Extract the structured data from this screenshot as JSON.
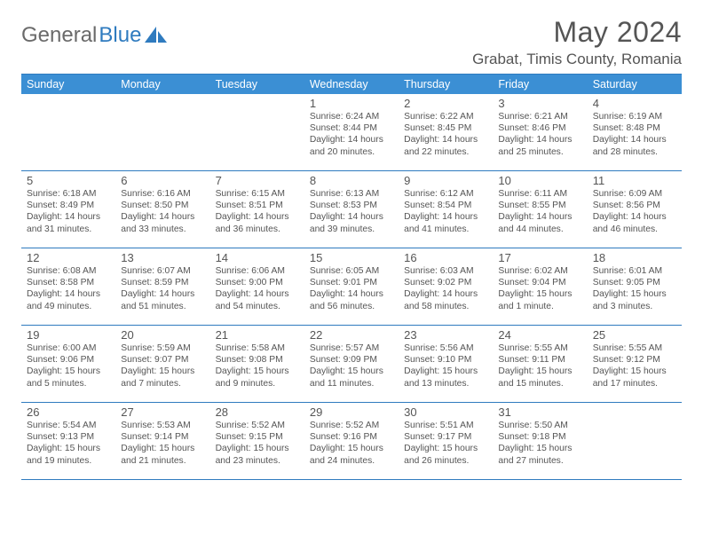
{
  "logo": {
    "textGray": "General",
    "textBlue": "Blue"
  },
  "header": {
    "month": "May 2024",
    "location": "Grabat, Timis County, Romania"
  },
  "colors": {
    "brand": "#3b8fd4",
    "rule": "#2f7bbf",
    "text": "#555555",
    "bg": "#ffffff"
  },
  "dow": [
    "Sunday",
    "Monday",
    "Tuesday",
    "Wednesday",
    "Thursday",
    "Friday",
    "Saturday"
  ],
  "weeks": [
    [
      {
        "n": "",
        "sr": "",
        "ss": "",
        "d1": "",
        "d2": "",
        "empty": true
      },
      {
        "n": "",
        "sr": "",
        "ss": "",
        "d1": "",
        "d2": "",
        "empty": true
      },
      {
        "n": "",
        "sr": "",
        "ss": "",
        "d1": "",
        "d2": "",
        "empty": true
      },
      {
        "n": "1",
        "sr": "Sunrise: 6:24 AM",
        "ss": "Sunset: 8:44 PM",
        "d1": "Daylight: 14 hours",
        "d2": "and 20 minutes."
      },
      {
        "n": "2",
        "sr": "Sunrise: 6:22 AM",
        "ss": "Sunset: 8:45 PM",
        "d1": "Daylight: 14 hours",
        "d2": "and 22 minutes."
      },
      {
        "n": "3",
        "sr": "Sunrise: 6:21 AM",
        "ss": "Sunset: 8:46 PM",
        "d1": "Daylight: 14 hours",
        "d2": "and 25 minutes."
      },
      {
        "n": "4",
        "sr": "Sunrise: 6:19 AM",
        "ss": "Sunset: 8:48 PM",
        "d1": "Daylight: 14 hours",
        "d2": "and 28 minutes."
      }
    ],
    [
      {
        "n": "5",
        "sr": "Sunrise: 6:18 AM",
        "ss": "Sunset: 8:49 PM",
        "d1": "Daylight: 14 hours",
        "d2": "and 31 minutes."
      },
      {
        "n": "6",
        "sr": "Sunrise: 6:16 AM",
        "ss": "Sunset: 8:50 PM",
        "d1": "Daylight: 14 hours",
        "d2": "and 33 minutes."
      },
      {
        "n": "7",
        "sr": "Sunrise: 6:15 AM",
        "ss": "Sunset: 8:51 PM",
        "d1": "Daylight: 14 hours",
        "d2": "and 36 minutes."
      },
      {
        "n": "8",
        "sr": "Sunrise: 6:13 AM",
        "ss": "Sunset: 8:53 PM",
        "d1": "Daylight: 14 hours",
        "d2": "and 39 minutes."
      },
      {
        "n": "9",
        "sr": "Sunrise: 6:12 AM",
        "ss": "Sunset: 8:54 PM",
        "d1": "Daylight: 14 hours",
        "d2": "and 41 minutes."
      },
      {
        "n": "10",
        "sr": "Sunrise: 6:11 AM",
        "ss": "Sunset: 8:55 PM",
        "d1": "Daylight: 14 hours",
        "d2": "and 44 minutes."
      },
      {
        "n": "11",
        "sr": "Sunrise: 6:09 AM",
        "ss": "Sunset: 8:56 PM",
        "d1": "Daylight: 14 hours",
        "d2": "and 46 minutes."
      }
    ],
    [
      {
        "n": "12",
        "sr": "Sunrise: 6:08 AM",
        "ss": "Sunset: 8:58 PM",
        "d1": "Daylight: 14 hours",
        "d2": "and 49 minutes."
      },
      {
        "n": "13",
        "sr": "Sunrise: 6:07 AM",
        "ss": "Sunset: 8:59 PM",
        "d1": "Daylight: 14 hours",
        "d2": "and 51 minutes."
      },
      {
        "n": "14",
        "sr": "Sunrise: 6:06 AM",
        "ss": "Sunset: 9:00 PM",
        "d1": "Daylight: 14 hours",
        "d2": "and 54 minutes."
      },
      {
        "n": "15",
        "sr": "Sunrise: 6:05 AM",
        "ss": "Sunset: 9:01 PM",
        "d1": "Daylight: 14 hours",
        "d2": "and 56 minutes."
      },
      {
        "n": "16",
        "sr": "Sunrise: 6:03 AM",
        "ss": "Sunset: 9:02 PM",
        "d1": "Daylight: 14 hours",
        "d2": "and 58 minutes."
      },
      {
        "n": "17",
        "sr": "Sunrise: 6:02 AM",
        "ss": "Sunset: 9:04 PM",
        "d1": "Daylight: 15 hours",
        "d2": "and 1 minute."
      },
      {
        "n": "18",
        "sr": "Sunrise: 6:01 AM",
        "ss": "Sunset: 9:05 PM",
        "d1": "Daylight: 15 hours",
        "d2": "and 3 minutes."
      }
    ],
    [
      {
        "n": "19",
        "sr": "Sunrise: 6:00 AM",
        "ss": "Sunset: 9:06 PM",
        "d1": "Daylight: 15 hours",
        "d2": "and 5 minutes."
      },
      {
        "n": "20",
        "sr": "Sunrise: 5:59 AM",
        "ss": "Sunset: 9:07 PM",
        "d1": "Daylight: 15 hours",
        "d2": "and 7 minutes."
      },
      {
        "n": "21",
        "sr": "Sunrise: 5:58 AM",
        "ss": "Sunset: 9:08 PM",
        "d1": "Daylight: 15 hours",
        "d2": "and 9 minutes."
      },
      {
        "n": "22",
        "sr": "Sunrise: 5:57 AM",
        "ss": "Sunset: 9:09 PM",
        "d1": "Daylight: 15 hours",
        "d2": "and 11 minutes."
      },
      {
        "n": "23",
        "sr": "Sunrise: 5:56 AM",
        "ss": "Sunset: 9:10 PM",
        "d1": "Daylight: 15 hours",
        "d2": "and 13 minutes."
      },
      {
        "n": "24",
        "sr": "Sunrise: 5:55 AM",
        "ss": "Sunset: 9:11 PM",
        "d1": "Daylight: 15 hours",
        "d2": "and 15 minutes."
      },
      {
        "n": "25",
        "sr": "Sunrise: 5:55 AM",
        "ss": "Sunset: 9:12 PM",
        "d1": "Daylight: 15 hours",
        "d2": "and 17 minutes."
      }
    ],
    [
      {
        "n": "26",
        "sr": "Sunrise: 5:54 AM",
        "ss": "Sunset: 9:13 PM",
        "d1": "Daylight: 15 hours",
        "d2": "and 19 minutes."
      },
      {
        "n": "27",
        "sr": "Sunrise: 5:53 AM",
        "ss": "Sunset: 9:14 PM",
        "d1": "Daylight: 15 hours",
        "d2": "and 21 minutes."
      },
      {
        "n": "28",
        "sr": "Sunrise: 5:52 AM",
        "ss": "Sunset: 9:15 PM",
        "d1": "Daylight: 15 hours",
        "d2": "and 23 minutes."
      },
      {
        "n": "29",
        "sr": "Sunrise: 5:52 AM",
        "ss": "Sunset: 9:16 PM",
        "d1": "Daylight: 15 hours",
        "d2": "and 24 minutes."
      },
      {
        "n": "30",
        "sr": "Sunrise: 5:51 AM",
        "ss": "Sunset: 9:17 PM",
        "d1": "Daylight: 15 hours",
        "d2": "and 26 minutes."
      },
      {
        "n": "31",
        "sr": "Sunrise: 5:50 AM",
        "ss": "Sunset: 9:18 PM",
        "d1": "Daylight: 15 hours",
        "d2": "and 27 minutes."
      },
      {
        "n": "",
        "sr": "",
        "ss": "",
        "d1": "",
        "d2": "",
        "empty": true
      }
    ]
  ]
}
